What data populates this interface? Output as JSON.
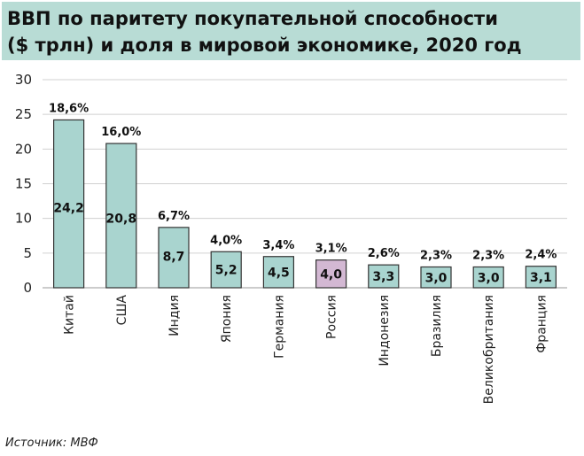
{
  "title": {
    "line1": "ВВП по паритету покупательной способности",
    "line2": "($ трлн) и доля в мировой экономике, 2020 год"
  },
  "source": "Источник: МВФ",
  "colors": {
    "bar": "#a9d4cf",
    "highlight": "#d3b8d3",
    "stroke": "#333333",
    "grid": "#d0d0d0",
    "title_bg": "#b8dcd5"
  },
  "chart_data": {
    "type": "bar",
    "title": "ВВП по паритету покупательной способности ($ трлн) и доля в мировой экономике, 2020 год",
    "categories": [
      "Китай",
      "США",
      "Индия",
      "Япония",
      "Германия",
      "Россия",
      "Индонезия",
      "Бразилия",
      "Великобритания",
      "Франция"
    ],
    "values": [
      24.2,
      20.8,
      8.7,
      5.2,
      4.5,
      4.0,
      3.3,
      3.0,
      3.0,
      3.1
    ],
    "value_labels": [
      "24,2",
      "20,8",
      "8,7",
      "5,2",
      "4,5",
      "4,0",
      "3,3",
      "3,0",
      "3,0",
      "3,1"
    ],
    "share_labels": [
      "18,6%",
      "16,0%",
      "6,7%",
      "4,0%",
      "3,4%",
      "3,1%",
      "2,6%",
      "2,3%",
      "2,3%",
      "2,4%"
    ],
    "highlight_category": "Россия",
    "ylim": [
      0,
      30
    ],
    "yticks": [
      0,
      5,
      10,
      15,
      20,
      25,
      30
    ],
    "ytick_labels": [
      "0",
      "5",
      "10",
      "15",
      "20",
      "25",
      "30"
    ],
    "grid": true,
    "legend": "none"
  }
}
